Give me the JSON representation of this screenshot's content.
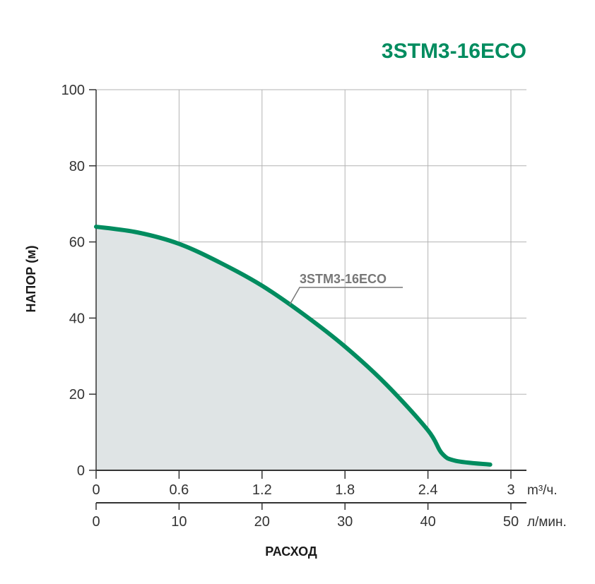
{
  "chart_data": {
    "type": "area",
    "title": "3STM3-16ECO",
    "ylabel": "НАПОР (м)",
    "xlabel": "РАСХОД",
    "ylim": [
      0,
      100
    ],
    "y_ticks": [
      "0",
      "20",
      "40",
      "60",
      "80",
      "100"
    ],
    "x_axes": [
      {
        "unit": "m³/ч.",
        "range": [
          0,
          3
        ],
        "ticks": [
          "0",
          "0.6",
          "1.2",
          "1.8",
          "2.4",
          "3"
        ]
      },
      {
        "unit": "л/мин.",
        "range": [
          0,
          50
        ],
        "ticks": [
          "0",
          "10",
          "20",
          "30",
          "40",
          "50"
        ]
      }
    ],
    "grid": true,
    "series": [
      {
        "name": "3STM3-16ECO",
        "color": "#008c5f",
        "fill": "#dfe4e5",
        "x": [
          0,
          0.3,
          0.6,
          0.9,
          1.2,
          1.5,
          1.8,
          2.1,
          2.4,
          2.5,
          2.6,
          2.85
        ],
        "y": [
          64,
          62.5,
          59.5,
          54.5,
          48.5,
          41,
          32.5,
          22.5,
          10.5,
          4.5,
          2.5,
          1.5
        ]
      }
    ]
  }
}
